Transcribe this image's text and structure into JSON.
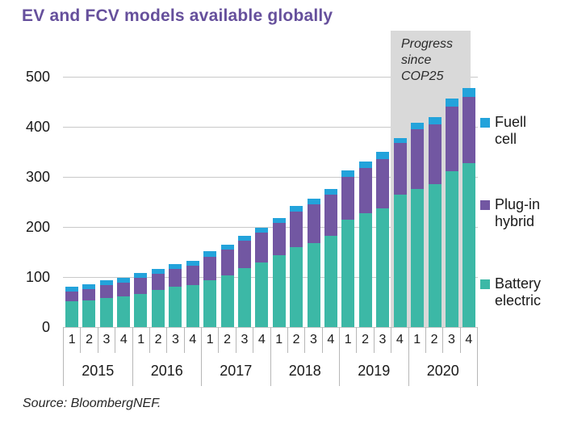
{
  "title": "EV and FCV models available globally",
  "source": "Source: BloombergNEF.",
  "annotation": {
    "line1": "Progress",
    "line2": "since",
    "line3": "COP25"
  },
  "legend": {
    "fuel_cell": {
      "line1": "Fuell",
      "line2": "cell",
      "color": "#23A3DB"
    },
    "plugin_hybrid": {
      "line1": "Plug-in",
      "line2": "hybrid",
      "color": "#7257A2"
    },
    "battery_electric": {
      "line1": "Battery",
      "line2": "electric",
      "color": "#3CB8A6"
    }
  },
  "colors": {
    "title": "#66509C",
    "grid": "#C9C9C9",
    "axis_divider": "#B7B7B7",
    "annotation_box": "#D9D9D9",
    "text": "#1A1A1A"
  },
  "chart_data": {
    "type": "bar",
    "stacked": true,
    "title": "EV and FCV models available globally",
    "ylim": [
      0,
      500
    ],
    "y_ticks": [
      0,
      100,
      200,
      300,
      400,
      500
    ],
    "gridlines": "horizontal",
    "legend_position": "right",
    "years": [
      "2015",
      "2016",
      "2017",
      "2018",
      "2019",
      "2020"
    ],
    "quarters_per_year": [
      "1",
      "2",
      "3",
      "4"
    ],
    "series": [
      {
        "name": "Battery electric",
        "color": "#3CB8A6",
        "values": [
          52,
          54,
          58,
          61,
          66,
          74,
          80,
          84,
          94,
          103,
          117,
          129,
          144,
          159,
          168,
          182,
          215,
          228,
          237,
          265,
          275,
          285,
          312,
          328
        ]
      },
      {
        "name": "Plug-in hybrid",
        "color": "#7257A2",
        "values": [
          20,
          22,
          25,
          27,
          32,
          33,
          36,
          39,
          47,
          51,
          55,
          59,
          65,
          71,
          77,
          82,
          85,
          91,
          98,
          103,
          119,
          120,
          129,
          132
        ]
      },
      {
        "name": "Fuell cell",
        "color": "#23A3DB",
        "values": [
          10,
          10,
          10,
          10,
          10,
          9,
          9,
          9,
          11,
          10,
          10,
          10,
          10,
          11,
          11,
          11,
          13,
          13,
          14,
          10,
          13,
          14,
          16,
          18
        ]
      }
    ],
    "totals": [
      82,
      86,
      93,
      98,
      108,
      116,
      125,
      132,
      152,
      164,
      182,
      198,
      219,
      241,
      256,
      275,
      313,
      332,
      349,
      378,
      407,
      419,
      457,
      478
    ],
    "annotation": {
      "text": "Progress since COP25",
      "covers_bars_from_index": 19,
      "covers_bars_to_index": 23
    },
    "source": "Source: BloombergNEF."
  }
}
